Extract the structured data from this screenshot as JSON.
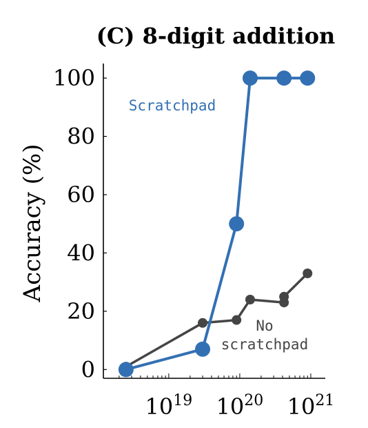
{
  "chart_data": {
    "type": "line",
    "title": "(C) 8-digit addition",
    "xlabel": "",
    "ylabel": "Accuracy (%)",
    "x_scale": "log",
    "xlim": [
      1.2e+18,
      1.6e+21
    ],
    "ylim": [
      -3,
      105
    ],
    "y_ticks": [
      0,
      20,
      40,
      60,
      80,
      100
    ],
    "x_major_ticks": [
      {
        "value": 1e+19,
        "base": "10",
        "exp": "19"
      },
      {
        "value": 1e+20,
        "base": "10",
        "exp": "20"
      },
      {
        "value": 1e+21,
        "base": "10",
        "exp": "21"
      }
    ],
    "grid": false,
    "legend": "inline",
    "series": [
      {
        "name": "Scratchpad",
        "color": "#3370b3",
        "x": [
          2.5e+18,
          3e+19,
          9e+19,
          1.4e+20,
          4.2e+20,
          9e+20
        ],
        "y": [
          0,
          7,
          50,
          100,
          100,
          100
        ],
        "label_lines": [
          "Scratchpad"
        ]
      },
      {
        "name": "No scratchpad",
        "color": "#454545",
        "x": [
          2.5e+18,
          3e+19,
          9e+19,
          1.4e+20,
          4.2e+20,
          4.2e+20,
          9e+20
        ],
        "y": [
          1,
          16,
          17,
          24,
          23,
          25,
          33
        ],
        "label_lines": [
          "No",
          "scratchpad"
        ]
      }
    ]
  }
}
